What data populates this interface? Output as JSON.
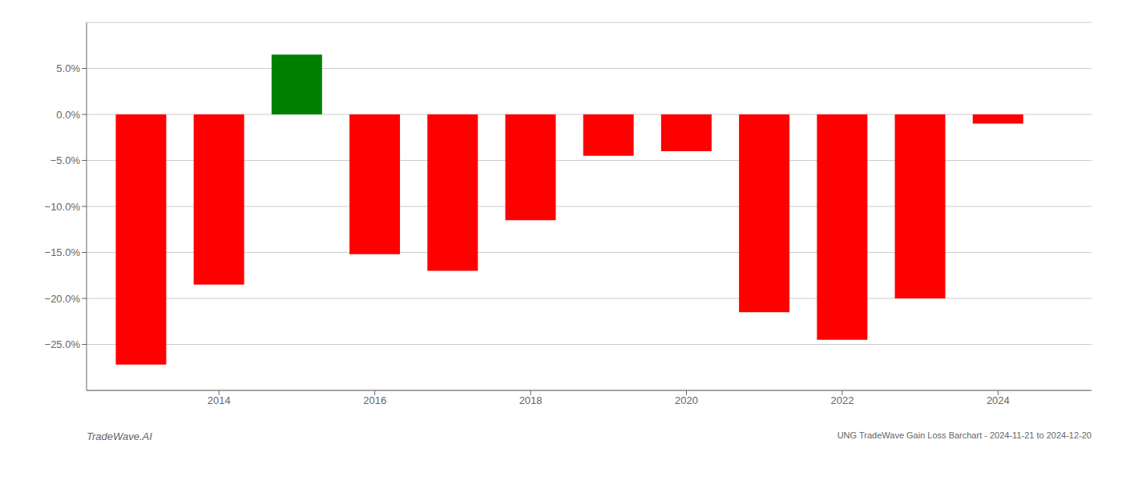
{
  "chart_data": {
    "type": "bar",
    "title": "UNG TradeWave Gain Loss Barchart - 2024-11-21 to 2024-12-20",
    "annotations": [
      "TradeWave.AI"
    ],
    "x": [
      2013,
      2014,
      2015,
      2016,
      2017,
      2018,
      2019,
      2020,
      2021,
      2022,
      2023,
      2024
    ],
    "values": [
      -0.272,
      -0.185,
      0.065,
      -0.152,
      -0.17,
      -0.115,
      -0.045,
      -0.04,
      -0.215,
      -0.245,
      -0.2,
      -0.01
    ],
    "colors": [
      "red",
      "red",
      "green",
      "red",
      "red",
      "red",
      "red",
      "red",
      "red",
      "red",
      "red",
      "red"
    ],
    "xlim": [
      2012.3,
      2025.2
    ],
    "xticks": [
      2014,
      2016,
      2018,
      2020,
      2022,
      2024
    ],
    "ylim": [
      -0.3,
      0.1
    ],
    "yticks": [
      {
        "value": -0.25,
        "label": "−25.0%"
      },
      {
        "value": -0.2,
        "label": "−20.0%"
      },
      {
        "value": -0.15,
        "label": "−15.0%"
      },
      {
        "value": -0.1,
        "label": "−10.0%"
      },
      {
        "value": -0.05,
        "label": "−5.0%"
      },
      {
        "value": 0.0,
        "label": "0.0%"
      },
      {
        "value": 0.05,
        "label": "5.0%"
      }
    ],
    "grid": true
  }
}
